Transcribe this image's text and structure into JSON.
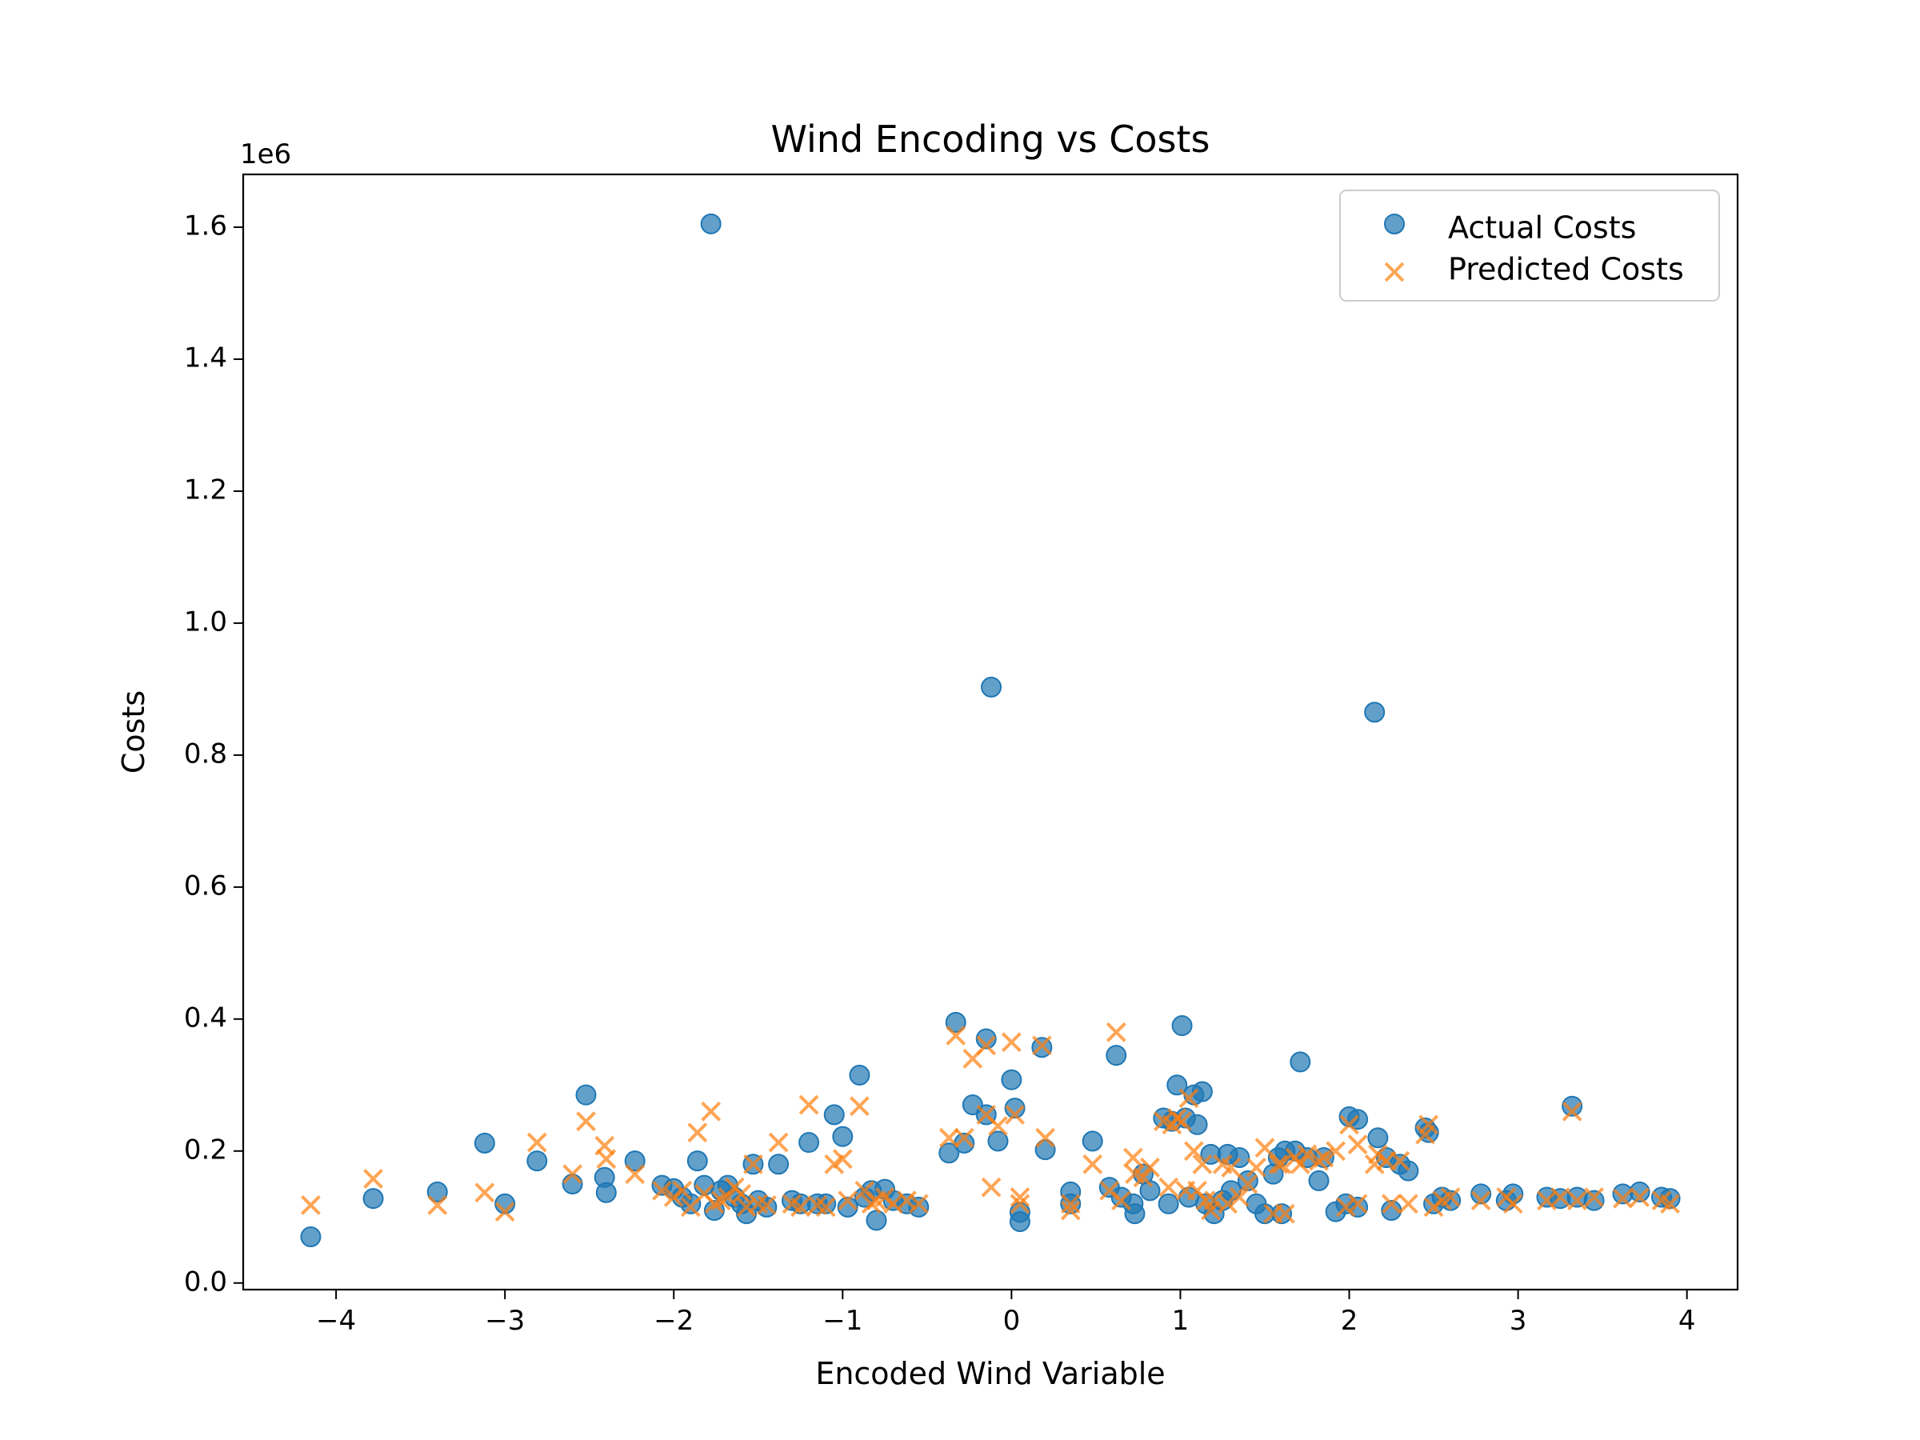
{
  "chart_data": {
    "type": "scatter",
    "title": "Wind Encoding vs Costs",
    "xlabel": "Encoded Wind Variable",
    "ylabel": "Costs",
    "y_offset_text": "1e6",
    "xlim": [
      -4.55,
      4.3
    ],
    "ylim": [
      -0.01,
      1.68
    ],
    "x_ticks": [
      -4,
      -3,
      -2,
      -1,
      0,
      1,
      2,
      3,
      4
    ],
    "x_tick_labels": [
      "−4",
      "−3",
      "−2",
      "−1",
      "0",
      "1",
      "2",
      "3",
      "4"
    ],
    "y_ticks": [
      0.0,
      0.2,
      0.4,
      0.6,
      0.8,
      1.0,
      1.2,
      1.4,
      1.6
    ],
    "y_tick_labels": [
      "0.0",
      "0.2",
      "0.4",
      "0.6",
      "0.8",
      "1.0",
      "1.2",
      "1.4",
      "1.6"
    ],
    "grid": false,
    "legend_position": "top-right",
    "colors": {
      "actual": "#1f77b4",
      "predicted": "#ff7f0e"
    },
    "series": [
      {
        "name": "Actual Costs",
        "marker": "circle",
        "points": [
          [
            -4.15,
            0.07
          ],
          [
            -3.78,
            0.128
          ],
          [
            -3.4,
            0.138
          ],
          [
            -3.12,
            0.212
          ],
          [
            -3.0,
            0.12
          ],
          [
            -2.81,
            0.185
          ],
          [
            -2.6,
            0.15
          ],
          [
            -2.52,
            0.285
          ],
          [
            -2.41,
            0.16
          ],
          [
            -2.4,
            0.137
          ],
          [
            -2.23,
            0.185
          ],
          [
            -2.07,
            0.148
          ],
          [
            -2.0,
            0.143
          ],
          [
            -1.95,
            0.13
          ],
          [
            -1.9,
            0.12
          ],
          [
            -1.86,
            0.185
          ],
          [
            -1.82,
            0.148
          ],
          [
            -1.78,
            1.605
          ],
          [
            -1.76,
            0.11
          ],
          [
            -1.72,
            0.14
          ],
          [
            -1.68,
            0.148
          ],
          [
            -1.64,
            0.13
          ],
          [
            -1.6,
            0.12
          ],
          [
            -1.57,
            0.105
          ],
          [
            -1.53,
            0.18
          ],
          [
            -1.5,
            0.125
          ],
          [
            -1.45,
            0.115
          ],
          [
            -1.38,
            0.18
          ],
          [
            -1.3,
            0.125
          ],
          [
            -1.25,
            0.12
          ],
          [
            -1.2,
            0.213
          ],
          [
            -1.15,
            0.12
          ],
          [
            -1.1,
            0.12
          ],
          [
            -1.05,
            0.255
          ],
          [
            -1.0,
            0.222
          ],
          [
            -0.97,
            0.115
          ],
          [
            -0.9,
            0.315
          ],
          [
            -0.87,
            0.13
          ],
          [
            -0.83,
            0.14
          ],
          [
            -0.8,
            0.095
          ],
          [
            -0.75,
            0.142
          ],
          [
            -0.7,
            0.125
          ],
          [
            -0.62,
            0.12
          ],
          [
            -0.55,
            0.115
          ],
          [
            -0.37,
            0.197
          ],
          [
            -0.33,
            0.395
          ],
          [
            -0.28,
            0.212
          ],
          [
            -0.23,
            0.27
          ],
          [
            -0.15,
            0.255
          ],
          [
            -0.15,
            0.37
          ],
          [
            -0.12,
            0.903
          ],
          [
            -0.08,
            0.215
          ],
          [
            0.0,
            0.308
          ],
          [
            0.02,
            0.265
          ],
          [
            0.05,
            0.093
          ],
          [
            0.05,
            0.107
          ],
          [
            0.18,
            0.357
          ],
          [
            0.2,
            0.202
          ],
          [
            0.35,
            0.138
          ],
          [
            0.35,
            0.12
          ],
          [
            0.48,
            0.215
          ],
          [
            0.58,
            0.145
          ],
          [
            0.62,
            0.345
          ],
          [
            0.65,
            0.13
          ],
          [
            0.72,
            0.12
          ],
          [
            0.73,
            0.105
          ],
          [
            0.78,
            0.165
          ],
          [
            0.82,
            0.14
          ],
          [
            0.9,
            0.25
          ],
          [
            0.93,
            0.12
          ],
          [
            0.95,
            0.245
          ],
          [
            0.98,
            0.3
          ],
          [
            1.01,
            0.39
          ],
          [
            1.03,
            0.25
          ],
          [
            1.05,
            0.13
          ],
          [
            1.08,
            0.285
          ],
          [
            1.1,
            0.24
          ],
          [
            1.13,
            0.29
          ],
          [
            1.15,
            0.12
          ],
          [
            1.18,
            0.195
          ],
          [
            1.2,
            0.105
          ],
          [
            1.25,
            0.125
          ],
          [
            1.28,
            0.195
          ],
          [
            1.3,
            0.14
          ],
          [
            1.35,
            0.19
          ],
          [
            1.4,
            0.155
          ],
          [
            1.45,
            0.12
          ],
          [
            1.5,
            0.105
          ],
          [
            1.55,
            0.165
          ],
          [
            1.58,
            0.19
          ],
          [
            1.6,
            0.105
          ],
          [
            1.62,
            0.2
          ],
          [
            1.68,
            0.2
          ],
          [
            1.71,
            0.335
          ],
          [
            1.75,
            0.19
          ],
          [
            1.82,
            0.155
          ],
          [
            1.85,
            0.19
          ],
          [
            1.92,
            0.108
          ],
          [
            1.98,
            0.12
          ],
          [
            2.0,
            0.252
          ],
          [
            2.05,
            0.248
          ],
          [
            2.05,
            0.115
          ],
          [
            2.15,
            0.865
          ],
          [
            2.17,
            0.22
          ],
          [
            2.22,
            0.19
          ],
          [
            2.25,
            0.11
          ],
          [
            2.3,
            0.18
          ],
          [
            2.35,
            0.17
          ],
          [
            2.45,
            0.235
          ],
          [
            2.47,
            0.228
          ],
          [
            2.5,
            0.12
          ],
          [
            2.55,
            0.13
          ],
          [
            2.6,
            0.125
          ],
          [
            2.78,
            0.135
          ],
          [
            2.93,
            0.125
          ],
          [
            2.97,
            0.135
          ],
          [
            3.17,
            0.13
          ],
          [
            3.25,
            0.128
          ],
          [
            3.32,
            0.268
          ],
          [
            3.35,
            0.13
          ],
          [
            3.45,
            0.125
          ],
          [
            3.62,
            0.135
          ],
          [
            3.72,
            0.138
          ],
          [
            3.85,
            0.13
          ],
          [
            3.9,
            0.128
          ]
        ]
      },
      {
        "name": "Predicted Costs",
        "marker": "x",
        "points": [
          [
            -4.15,
            0.118
          ],
          [
            -3.78,
            0.158
          ],
          [
            -3.4,
            0.118
          ],
          [
            -3.12,
            0.137
          ],
          [
            -3.0,
            0.108
          ],
          [
            -2.81,
            0.213
          ],
          [
            -2.6,
            0.165
          ],
          [
            -2.52,
            0.245
          ],
          [
            -2.41,
            0.208
          ],
          [
            -2.4,
            0.188
          ],
          [
            -2.23,
            0.165
          ],
          [
            -2.07,
            0.14
          ],
          [
            -2.0,
            0.13
          ],
          [
            -1.95,
            0.14
          ],
          [
            -1.9,
            0.115
          ],
          [
            -1.86,
            0.228
          ],
          [
            -1.82,
            0.135
          ],
          [
            -1.78,
            0.26
          ],
          [
            -1.76,
            0.12
          ],
          [
            -1.72,
            0.125
          ],
          [
            -1.68,
            0.13
          ],
          [
            -1.64,
            0.145
          ],
          [
            -1.6,
            0.135
          ],
          [
            -1.57,
            0.115
          ],
          [
            -1.53,
            0.18
          ],
          [
            -1.5,
            0.12
          ],
          [
            -1.45,
            0.118
          ],
          [
            -1.38,
            0.213
          ],
          [
            -1.3,
            0.12
          ],
          [
            -1.25,
            0.115
          ],
          [
            -1.2,
            0.27
          ],
          [
            -1.15,
            0.118
          ],
          [
            -1.1,
            0.115
          ],
          [
            -1.05,
            0.18
          ],
          [
            -1.0,
            0.188
          ],
          [
            -0.97,
            0.125
          ],
          [
            -0.9,
            0.268
          ],
          [
            -0.87,
            0.14
          ],
          [
            -0.83,
            0.12
          ],
          [
            -0.8,
            0.125
          ],
          [
            -0.75,
            0.13
          ],
          [
            -0.7,
            0.12
          ],
          [
            -0.62,
            0.125
          ],
          [
            -0.55,
            0.12
          ],
          [
            -0.37,
            0.22
          ],
          [
            -0.33,
            0.375
          ],
          [
            -0.28,
            0.22
          ],
          [
            -0.23,
            0.34
          ],
          [
            -0.15,
            0.255
          ],
          [
            -0.15,
            0.36
          ],
          [
            -0.12,
            0.145
          ],
          [
            -0.08,
            0.238
          ],
          [
            0.0,
            0.365
          ],
          [
            0.02,
            0.255
          ],
          [
            0.05,
            0.13
          ],
          [
            0.05,
            0.12
          ],
          [
            0.18,
            0.36
          ],
          [
            0.2,
            0.22
          ],
          [
            0.35,
            0.12
          ],
          [
            0.35,
            0.11
          ],
          [
            0.48,
            0.18
          ],
          [
            0.58,
            0.14
          ],
          [
            0.62,
            0.38
          ],
          [
            0.65,
            0.125
          ],
          [
            0.72,
            0.19
          ],
          [
            0.73,
            0.165
          ],
          [
            0.78,
            0.16
          ],
          [
            0.82,
            0.175
          ],
          [
            0.9,
            0.245
          ],
          [
            0.93,
            0.145
          ],
          [
            0.95,
            0.24
          ],
          [
            0.98,
            0.25
          ],
          [
            1.01,
            0.245
          ],
          [
            1.03,
            0.14
          ],
          [
            1.05,
            0.28
          ],
          [
            1.08,
            0.2
          ],
          [
            1.1,
            0.14
          ],
          [
            1.13,
            0.18
          ],
          [
            1.15,
            0.125
          ],
          [
            1.18,
            0.11
          ],
          [
            1.2,
            0.125
          ],
          [
            1.25,
            0.18
          ],
          [
            1.28,
            0.12
          ],
          [
            1.3,
            0.175
          ],
          [
            1.35,
            0.13
          ],
          [
            1.4,
            0.15
          ],
          [
            1.45,
            0.175
          ],
          [
            1.5,
            0.205
          ],
          [
            1.55,
            0.105
          ],
          [
            1.58,
            0.18
          ],
          [
            1.6,
            0.18
          ],
          [
            1.62,
            0.105
          ],
          [
            1.68,
            0.19
          ],
          [
            1.71,
            0.18
          ],
          [
            1.75,
            0.195
          ],
          [
            1.82,
            0.185
          ],
          [
            1.85,
            0.19
          ],
          [
            1.92,
            0.2
          ],
          [
            1.98,
            0.115
          ],
          [
            2.0,
            0.24
          ],
          [
            2.05,
            0.21
          ],
          [
            2.05,
            0.12
          ],
          [
            2.15,
            0.18
          ],
          [
            2.17,
            0.195
          ],
          [
            2.22,
            0.185
          ],
          [
            2.25,
            0.12
          ],
          [
            2.3,
            0.185
          ],
          [
            2.35,
            0.12
          ],
          [
            2.45,
            0.225
          ],
          [
            2.47,
            0.24
          ],
          [
            2.5,
            0.115
          ],
          [
            2.55,
            0.125
          ],
          [
            2.6,
            0.13
          ],
          [
            2.78,
            0.125
          ],
          [
            2.93,
            0.13
          ],
          [
            2.97,
            0.12
          ],
          [
            3.17,
            0.125
          ],
          [
            3.25,
            0.13
          ],
          [
            3.32,
            0.26
          ],
          [
            3.35,
            0.125
          ],
          [
            3.45,
            0.13
          ],
          [
            3.62,
            0.128
          ],
          [
            3.72,
            0.13
          ],
          [
            3.85,
            0.125
          ],
          [
            3.9,
            0.12
          ]
        ]
      }
    ]
  }
}
